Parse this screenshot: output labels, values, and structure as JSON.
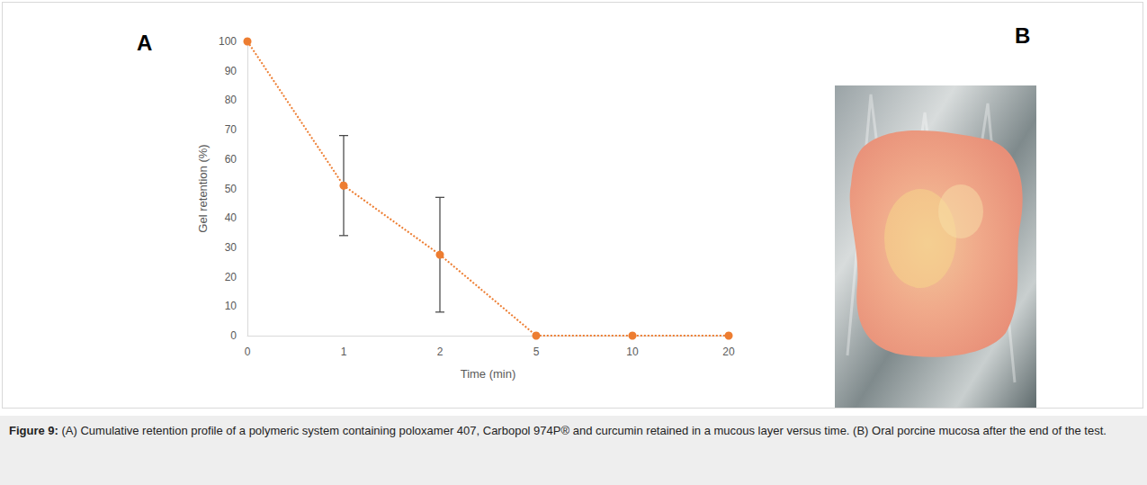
{
  "chart_data": {
    "type": "line",
    "x_label": "Time (min)",
    "y_label": "Gel retention (%)",
    "categories": [
      "0",
      "1",
      "2",
      "5",
      "10",
      "20"
    ],
    "values": [
      100,
      51,
      27.5,
      0,
      0,
      0
    ],
    "errors": [
      null,
      17,
      19.5,
      null,
      null,
      null
    ],
    "color": "#ed7d31",
    "marker": "circle",
    "line_style": "dotted",
    "ylim": [
      0,
      100
    ],
    "yticks": [
      0,
      10,
      20,
      30,
      40,
      50,
      60,
      70,
      80,
      90,
      100
    ],
    "grid": false
  },
  "figure": {
    "panel_labels": [
      "A",
      "B"
    ],
    "caption_label": "Figure 9:",
    "caption_text": "(A) Cumulative retention profile of a polymeric system containing poloxamer 407, Carbopol 974P® and curcumin retained in a mucous layer versus time. (B) Oral porcine mucosa after the end of the test."
  }
}
